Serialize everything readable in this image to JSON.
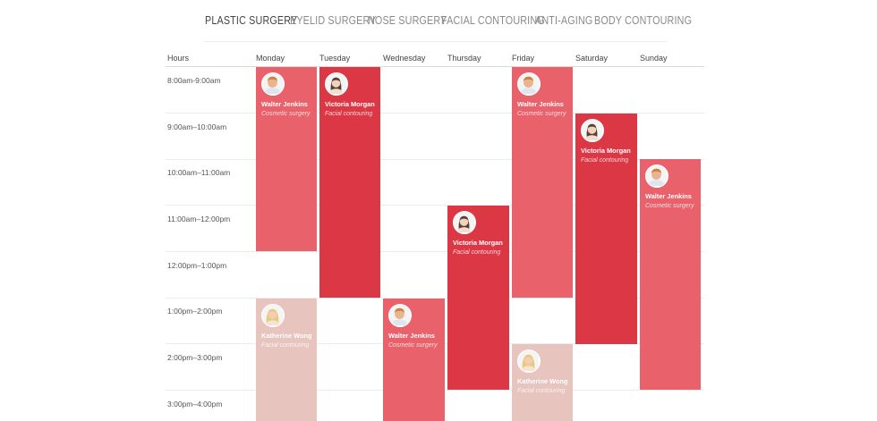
{
  "tabs": [
    {
      "label": "PLASTIC SURGERY",
      "active": true
    },
    {
      "label": "EYELID SURGERY",
      "active": false
    },
    {
      "label": "NOSE SURGERY",
      "active": false
    },
    {
      "label": "FACIAL CONTOURING",
      "active": false
    },
    {
      "label": "ANTI-AGING",
      "active": false
    },
    {
      "label": "BODY CONTOURING",
      "active": false
    }
  ],
  "timetable": {
    "columns": [
      "Hours",
      "Monday",
      "Tuesday",
      "Wednesday",
      "Thursday",
      "Friday",
      "Saturday",
      "Sunday"
    ],
    "hours": [
      "8:00am-9:00am",
      "9:00am–10:00am",
      "10:00am–11:00am",
      "11:00am–12:00pm",
      "12:00pm–1:00pm",
      "1:00pm–2:00pm",
      "2:00pm–3:00pm",
      "3:00pm–4:00pm"
    ],
    "events": [
      {
        "day": "Monday",
        "start": "8:00am",
        "end": "12:00pm",
        "name": "Walter Jenkins",
        "procedure": "Cosmetic surgery",
        "avatar": "male-avatar-icon",
        "color": "#e8616b"
      },
      {
        "day": "Monday",
        "start": "1:00pm",
        "end": "",
        "name": "Katherine Wong",
        "procedure": "Facial contouring",
        "avatar": "female-blonde-avatar-icon",
        "color": "#e8c4bf"
      },
      {
        "day": "Tuesday",
        "start": "8:00am",
        "end": "1:00pm",
        "name": "Victoria Morgan",
        "procedure": "Facial contouring",
        "avatar": "female-avatar-icon",
        "color": "#dc3745"
      },
      {
        "day": "Wednesday",
        "start": "1:00pm",
        "end": "",
        "name": "Walter Jenkins",
        "procedure": "Cosmetic surgery",
        "avatar": "male-avatar-icon",
        "color": "#e8616b"
      },
      {
        "day": "Thursday",
        "start": "11:00am",
        "end": "3:00pm",
        "name": "Victoria Morgan",
        "procedure": "Facial contouring",
        "avatar": "female-avatar-icon",
        "color": "#dc3745"
      },
      {
        "day": "Friday",
        "start": "8:00am",
        "end": "1:00pm",
        "name": "Walter Jenkins",
        "procedure": "Cosmetic surgery",
        "avatar": "male-avatar-icon",
        "color": "#e8616b"
      },
      {
        "day": "Friday",
        "start": "2:00pm",
        "end": "",
        "name": "Katherine Wong",
        "procedure": "Facial contouring",
        "avatar": "female-blonde-avatar-icon",
        "color": "#e8c4bf"
      },
      {
        "day": "Saturday",
        "start": "9:00am",
        "end": "2:00pm",
        "name": "Victoria Morgan",
        "procedure": "Facial contouring",
        "avatar": "female-avatar-icon",
        "color": "#dc3745"
      },
      {
        "day": "Sunday",
        "start": "10:00am",
        "end": "3:00pm",
        "name": "Walter Jenkins",
        "procedure": "Cosmetic surgery",
        "avatar": "male-avatar-icon",
        "color": "#e8616b"
      }
    ]
  }
}
